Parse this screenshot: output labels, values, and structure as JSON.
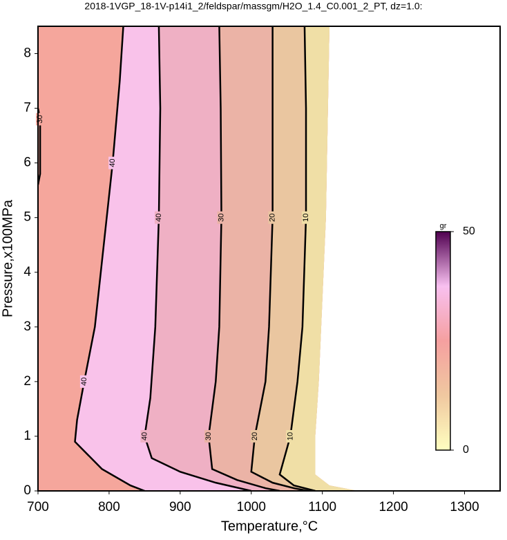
{
  "chart_data": {
    "type": "contour",
    "title": "2018-1VGP_18-1V-p14i1_2/feldspar/massgm/H2O_1.4_C0.001_2_PT, dz=1.0:",
    "xlabel": "Temperature,°C",
    "ylabel": "Pressure,x100MPa",
    "xlim": [
      700,
      1350
    ],
    "ylim": [
      0,
      8.5
    ],
    "xticks": [
      700,
      800,
      900,
      1000,
      1100,
      1200,
      1300
    ],
    "yticks": [
      0,
      1,
      2,
      3,
      4,
      5,
      6,
      7,
      8
    ],
    "grid": true,
    "base_fill": "#f5a69c",
    "domain_edge": {
      "x": [
        1110,
        1105,
        1095,
        1090,
        1090,
        1110,
        1150
      ],
      "y": [
        8.5,
        5,
        2,
        1,
        0.3,
        0.1,
        0
      ]
    },
    "contours": [
      {
        "level": 40,
        "fill": "#f9c2ea",
        "x": [
          820,
          815,
          805,
          795,
          780,
          765,
          755,
          752,
          790,
          830,
          850
        ],
        "y": [
          8.5,
          7.5,
          6,
          4.8,
          3,
          2,
          1.3,
          0.9,
          0.4,
          0.1,
          0
        ]
      },
      {
        "level": 40,
        "fill": "#efb0c4",
        "x": [
          870,
          872,
          870,
          865,
          858,
          850,
          860,
          900,
          950,
          1000
        ],
        "y": [
          8.5,
          7,
          5,
          3,
          1.7,
          1,
          0.6,
          0.35,
          0.15,
          0
        ]
      },
      {
        "level": 30,
        "fill": "#ebb3a6",
        "x": [
          955,
          957,
          958,
          955,
          950,
          940,
          945,
          980,
          1020,
          1040
        ],
        "y": [
          8.5,
          7,
          5,
          3,
          2,
          1,
          0.4,
          0.2,
          0.05,
          0
        ]
      },
      {
        "level": 20,
        "fill": "#eac6a0",
        "x": [
          1030,
          1030,
          1030,
          1025,
          1020,
          1005,
          1000,
          1030,
          1060,
          1080
        ],
        "y": [
          8.5,
          7,
          5,
          3,
          2,
          1,
          0.35,
          0.15,
          0.05,
          0
        ]
      },
      {
        "level": 10,
        "fill": "#f0dfa6",
        "x": [
          1075,
          1077,
          1077,
          1072,
          1065,
          1055,
          1040,
          1060,
          1090
        ],
        "y": [
          8.5,
          7,
          5,
          3,
          2,
          1,
          0.3,
          0.1,
          0
        ]
      },
      {
        "level": 30,
        "fill": null,
        "x": [
          700,
          703,
          703,
          700
        ],
        "y": [
          7,
          6.8,
          5.8,
          5.6
        ]
      }
    ],
    "colorbar": {
      "label": "gr",
      "clim": [
        0,
        50
      ],
      "ticks": [
        0,
        50
      ],
      "colors": [
        "#ffffc0",
        "#f0c8a0",
        "#f5a0a0",
        "#f8c0f0",
        "#500050"
      ]
    }
  }
}
